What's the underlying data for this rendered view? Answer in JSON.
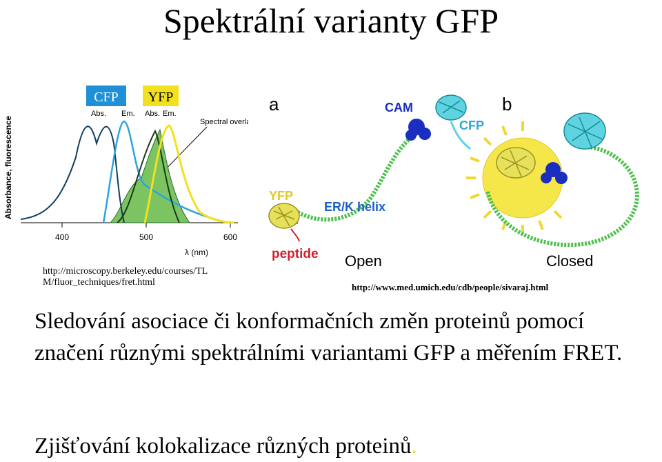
{
  "slide": {
    "title": "Spektrální varianty GFP",
    "left_figure": {
      "cfp_label": "CFP",
      "yfp_label": "YFP",
      "cfp_abs": "Abs.",
      "cfp_em": "Em.",
      "yfp_abs": "Abs.",
      "yfp_em": "Em.",
      "overlap_label": "Spectral overlap",
      "y_axis_label": "Absorbance, fluorescence",
      "x_axis_label": "λ (nm)",
      "x_ticks": [
        "400",
        "500",
        "600"
      ],
      "colors": {
        "cfp": "#1f8fd6",
        "yfp": "#f2e11c",
        "overlap": "#7cc462"
      }
    },
    "left_caption_line1": "http://microscopy.berkeley.edu/courses/TL",
    "left_caption_line2": "M/fluor_techniques/fret.html",
    "right_figure": {
      "label_a": "a",
      "label_b": "b",
      "cam": "CAM",
      "cfp": "CFP",
      "yfp": "YFP",
      "erk_helix": "ER/K helix",
      "peptide": "peptide",
      "open": "Open",
      "closed": "Closed"
    },
    "right_caption": "http://www.med.umich.edu/cdb/people/sivaraj.html",
    "paragraph1": "Sledování asociace či konformačních změn proteinů pomocí značení různými spektrálními variantami GFP a měřením FRET.",
    "paragraph2_text": "Zjišťování kolokalizace různých proteinů",
    "paragraph2_period": "."
  }
}
